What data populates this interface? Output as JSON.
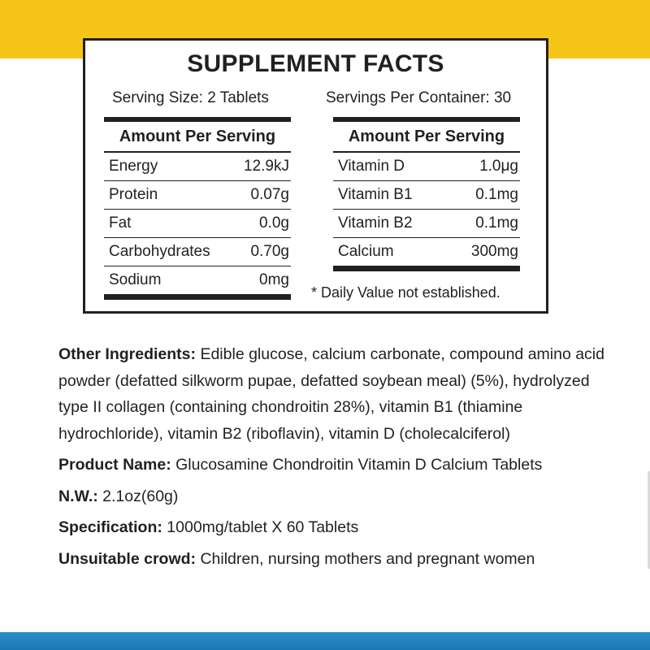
{
  "facts": {
    "title": "SUPPLEMENT FACTS",
    "serving_size": "Serving Size: 2 Tablets",
    "servings_per_container": "Servings Per Container: 30",
    "left_table": {
      "header": "Amount Per Serving",
      "rows": [
        {
          "name": "Energy",
          "value": "12.9kJ"
        },
        {
          "name": "Protein",
          "value": "0.07g"
        },
        {
          "name": "Fat",
          "value": "0.0g"
        },
        {
          "name": "Carbohydrates",
          "value": "0.70g"
        },
        {
          "name": "Sodium",
          "value": "0mg"
        }
      ]
    },
    "right_table": {
      "header": "Amount Per Serving",
      "rows": [
        {
          "name": "Vitamin D",
          "value": "1.0μg"
        },
        {
          "name": "Vitamin B1",
          "value": "0.1mg"
        },
        {
          "name": "Vitamin B2",
          "value": "0.1mg"
        },
        {
          "name": "Calcium",
          "value": "300mg"
        }
      ]
    },
    "daily_value_note": "* Daily Value not established."
  },
  "info": {
    "other_ingredients_label": "Other Ingredients:",
    "other_ingredients_value": "Edible glucose, calcium carbonate, compound amino acid powder (defatted silkworm pupae, defatted soybean meal) (5%), hydrolyzed type II collagen (containing chondroitin 28%), vitamin B1 (thiamine hydrochloride), vitamin B2 (riboflavin), vitamin D (cholecalciferol)",
    "product_name_label": "Product Name:",
    "product_name_value": "Glucosamine Chondroitin Vitamin D Calcium Tablets",
    "nw_label": "N.W.:",
    "nw_value": "2.1oz(60g)",
    "specification_label": "Specification:",
    "specification_value": "1000mg/tablet X 60 Tablets",
    "unsuitable_label": "Unsuitable crowd:",
    "unsuitable_value": "Children, nursing mothers and pregnant women"
  },
  "colors": {
    "top_band": "#f5c518",
    "bottom_band": "#1b76b1",
    "text": "#231f20"
  }
}
